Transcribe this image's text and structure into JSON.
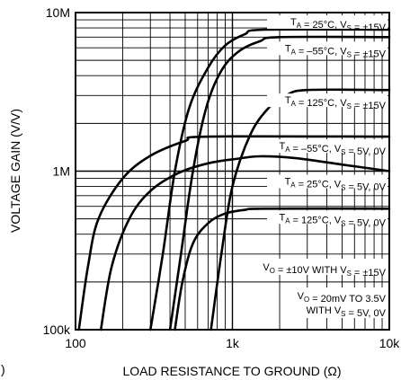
{
  "chart_data": {
    "type": "line",
    "xlabel": "LOAD RESISTANCE TO GROUND (Ω)",
    "ylabel": "VOLTAGE GAIN (V/V)",
    "x_scale": "log",
    "y_scale": "log",
    "xlim": [
      100,
      10000
    ],
    "ylim": [
      100000,
      10000000
    ],
    "x_ticks": [
      {
        "value": 100,
        "label": "100"
      },
      {
        "value": 1000,
        "label": "1k"
      },
      {
        "value": 10000,
        "label": "10k"
      }
    ],
    "y_ticks": [
      {
        "value": 100000,
        "label": "100k"
      },
      {
        "value": 1000000,
        "label": "1M"
      },
      {
        "value": 10000000,
        "label": "10M"
      }
    ],
    "grid": true,
    "series": [
      {
        "name": "T_A = 25°C, V_S = ±15V",
        "label": {
          "pre": "T",
          "sub1": "A",
          "mid": " = 25°C, V",
          "sub2": "S",
          "post": " = ±15V"
        },
        "points": [
          [
            300,
            100000
          ],
          [
            360,
            300000
          ],
          [
            430,
            1000000
          ],
          [
            530,
            2500000
          ],
          [
            700,
            4500000
          ],
          [
            900,
            6200000
          ],
          [
            1200,
            7300000
          ],
          [
            1600,
            7800000
          ],
          [
            10000,
            7800000
          ]
        ]
      },
      {
        "name": "T_A = –55°C, V_S = ±15V",
        "label": {
          "pre": "T",
          "sub1": "A",
          "mid": " = –55°C, V",
          "sub2": "S",
          "post": " = ±15V"
        },
        "points": [
          [
            400,
            100000
          ],
          [
            470,
            300000
          ],
          [
            560,
            1000000
          ],
          [
            680,
            2500000
          ],
          [
            850,
            4300000
          ],
          [
            1100,
            5700000
          ],
          [
            1500,
            6600000
          ],
          [
            2000,
            7000000
          ],
          [
            10000,
            7000000
          ]
        ]
      },
      {
        "name": "T_A = 125°C, V_S = ±15V",
        "label": {
          "pre": "T",
          "sub1": "A",
          "mid": " = 125°C, V",
          "sub2": "S",
          "post": " = ±15V"
        },
        "points": [
          [
            730,
            100000
          ],
          [
            850,
            300000
          ],
          [
            1000,
            800000
          ],
          [
            1300,
            1700000
          ],
          [
            1700,
            2500000
          ],
          [
            2200,
            3000000
          ],
          [
            3000,
            3250000
          ],
          [
            10000,
            3250000
          ]
        ]
      },
      {
        "name": "T_A = –55°C, V_S = 5V, 0V",
        "label": {
          "pre": "T",
          "sub1": "A",
          "mid": " = –55°C, V",
          "sub2": "S",
          "post": " = 5V, 0V"
        },
        "points": [
          [
            105,
            100000
          ],
          [
            120,
            250000
          ],
          [
            140,
            500000
          ],
          [
            200,
            900000
          ],
          [
            300,
            1250000
          ],
          [
            500,
            1550000
          ],
          [
            700,
            1650000
          ],
          [
            10000,
            1650000
          ]
        ]
      },
      {
        "name": "T_A = 25°C, V_S = 5V, 0V",
        "label": {
          "pre": "T",
          "sub1": "A",
          "mid": " = 25°C, V",
          "sub2": "S",
          "post": " = 5V, 0V"
        },
        "points": [
          [
            145,
            100000
          ],
          [
            170,
            250000
          ],
          [
            220,
            500000
          ],
          [
            300,
            750000
          ],
          [
            450,
            970000
          ],
          [
            700,
            1120000
          ],
          [
            1100,
            1200000
          ],
          [
            1500,
            1240000
          ],
          [
            2500,
            1210000
          ],
          [
            5000,
            1100000
          ],
          [
            10000,
            1000000
          ]
        ]
      },
      {
        "name": "T_A = 125°C, V_S = 5V, 0V",
        "label": {
          "pre": "T",
          "sub1": "A",
          "mid": " = 125°C, V",
          "sub2": "S",
          "post": " = 5V, 0V"
        },
        "points": [
          [
            430,
            100000
          ],
          [
            480,
            200000
          ],
          [
            560,
            350000
          ],
          [
            700,
            470000
          ],
          [
            900,
            540000
          ],
          [
            1200,
            570000
          ],
          [
            1600,
            580000
          ],
          [
            10000,
            580000
          ]
        ]
      }
    ],
    "annotations": [
      {
        "lines": [
          {
            "pre": "V",
            "sub1": "O",
            "mid": " = ±10V WITH V",
            "sub2": "S",
            "post": " = ±15V"
          }
        ]
      },
      {
        "lines": [
          {
            "pre": "V",
            "sub1": "O",
            "mid": " = 20mV TO 3.5V",
            "sub2": "",
            "post": ""
          },
          {
            "pre": "WITH V",
            "sub1": "S",
            "mid": " = 5V, 0V",
            "sub2": "",
            "post": ""
          }
        ]
      }
    ],
    "corner_mark": ")"
  }
}
